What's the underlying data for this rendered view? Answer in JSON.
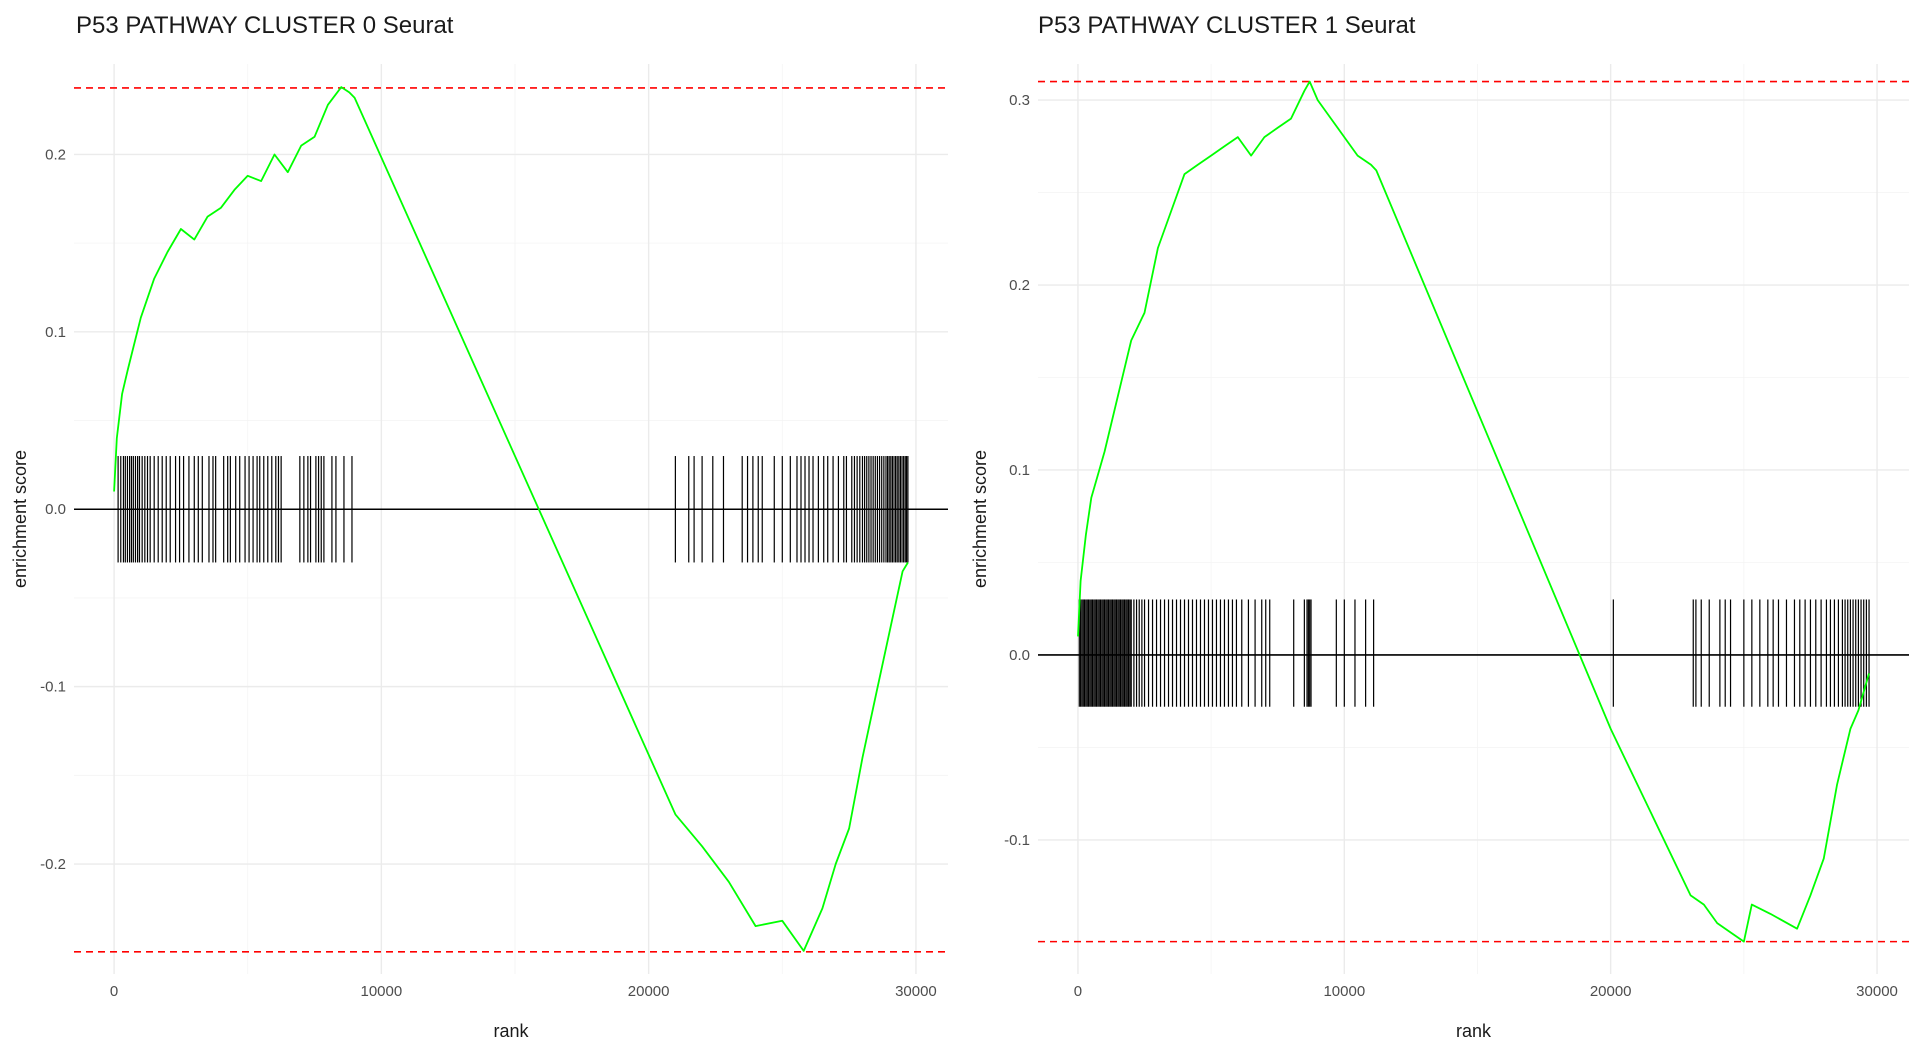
{
  "chart_data": [
    {
      "type": "line",
      "title": "P53 PATHWAY CLUSTER 0 Seurat",
      "xlabel": "rank",
      "ylabel": "enrichment score",
      "xlim": [
        -1500,
        31200
      ],
      "ylim": [
        -0.262,
        0.251
      ],
      "x_ticks": [
        0,
        10000,
        20000,
        30000
      ],
      "x_tick_labels": [
        "0",
        "10000",
        "20000",
        "30000"
      ],
      "y_ticks": [
        -0.2,
        -0.1,
        0.0,
        0.1,
        0.2
      ],
      "y_tick_labels": [
        "-0.2",
        "-0.1",
        "0.0",
        "0.1",
        "0.2"
      ],
      "grid": true,
      "max_es": 0.2375,
      "min_es": -0.2495,
      "hit_band": [
        -0.03,
        0.03
      ],
      "colors": {
        "curve": "#00ff00",
        "limits": "#ff0000",
        "hits": "#000000",
        "zero": "#000000"
      },
      "series": [
        {
          "type": "line",
          "x": [
            0,
            100,
            300,
            500,
            700,
            1000,
            1500,
            2000,
            2500,
            3000,
            3500,
            4000,
            4500,
            5000,
            5500,
            6000,
            6500,
            7000,
            7500,
            8000,
            8500,
            8800,
            9000,
            21000,
            22000,
            23000,
            24000,
            25000,
            25800,
            26500,
            27000,
            27500,
            28000,
            28500,
            29000,
            29500,
            29700
          ],
          "y": [
            0.01,
            0.04,
            0.065,
            0.078,
            0.09,
            0.108,
            0.13,
            0.145,
            0.158,
            0.152,
            0.165,
            0.17,
            0.18,
            0.188,
            0.185,
            0.2,
            0.19,
            0.205,
            0.21,
            0.228,
            0.238,
            0.235,
            0.232,
            -0.172,
            -0.19,
            -0.21,
            -0.235,
            -0.232,
            -0.249,
            -0.225,
            -0.2,
            -0.18,
            -0.14,
            -0.105,
            -0.07,
            -0.035,
            -0.03
          ]
        }
      ],
      "hits": [
        150,
        250,
        350,
        420,
        500,
        580,
        650,
        720,
        800,
        880,
        950,
        1050,
        1150,
        1250,
        1350,
        1500,
        1650,
        1800,
        1950,
        2100,
        2300,
        2450,
        2600,
        2800,
        3000,
        3150,
        3300,
        3550,
        3700,
        3800,
        4100,
        4250,
        4350,
        4550,
        4700,
        4900,
        5050,
        5200,
        5350,
        5450,
        5600,
        5750,
        5900,
        6050,
        6150,
        6250,
        6950,
        7100,
        7250,
        7350,
        7550,
        7650,
        7750,
        7850,
        8150,
        8300,
        8600,
        8900,
        21000,
        21500,
        21700,
        22000,
        22400,
        22800,
        23500,
        23700,
        23900,
        24100,
        24250,
        24700,
        25000,
        25300,
        25550,
        25700,
        25850,
        26000,
        26150,
        26350,
        26550,
        26700,
        26900,
        27100,
        27300,
        27400,
        27600,
        27700,
        27800,
        27900,
        28000,
        28080,
        28160,
        28240,
        28320,
        28400,
        28480,
        28560,
        28640,
        28720,
        28800,
        28880,
        28940,
        29000,
        29060,
        29120,
        29180,
        29240,
        29300,
        29360,
        29420,
        29480,
        29540,
        29600,
        29650,
        29700
      ]
    },
    {
      "type": "line",
      "title": "P53 PATHWAY CLUSTER 1 Seurat",
      "xlabel": "rank",
      "ylabel": "enrichment score",
      "xlim": [
        -1500,
        31200
      ],
      "ylim": [
        -0.1725,
        0.3195
      ],
      "x_ticks": [
        0,
        10000,
        20000,
        30000
      ],
      "x_tick_labels": [
        "0",
        "10000",
        "20000",
        "30000"
      ],
      "y_ticks": [
        -0.1,
        0.0,
        0.1,
        0.2,
        0.3
      ],
      "y_tick_labels": [
        "-0.1",
        "0.0",
        "0.1",
        "0.2",
        "0.3"
      ],
      "grid": true,
      "max_es": 0.31,
      "min_es": -0.155,
      "hit_band": [
        -0.028,
        0.03
      ],
      "colors": {
        "curve": "#00ff00",
        "limits": "#ff0000",
        "hits": "#000000",
        "zero": "#000000"
      },
      "series": [
        {
          "type": "line",
          "x": [
            0,
            100,
            300,
            500,
            800,
            1000,
            1500,
            2000,
            2500,
            3000,
            3500,
            4000,
            4500,
            5000,
            5500,
            6000,
            6500,
            7000,
            7500,
            8000,
            8500,
            8700,
            9000,
            9500,
            10000,
            10500,
            11000,
            11200,
            20000,
            23000,
            23500,
            24000,
            24500,
            25000,
            25300,
            26000,
            27000,
            27500,
            28000,
            28500,
            29000,
            29300,
            29700
          ],
          "y": [
            0.01,
            0.04,
            0.065,
            0.085,
            0.1,
            0.11,
            0.14,
            0.17,
            0.185,
            0.22,
            0.24,
            0.26,
            0.265,
            0.27,
            0.275,
            0.28,
            0.27,
            0.28,
            0.285,
            0.29,
            0.305,
            0.31,
            0.3,
            0.29,
            0.28,
            0.27,
            0.265,
            0.262,
            -0.04,
            -0.13,
            -0.135,
            -0.145,
            -0.15,
            -0.155,
            -0.135,
            -0.14,
            -0.148,
            -0.13,
            -0.11,
            -0.07,
            -0.04,
            -0.03,
            -0.01
          ]
        }
      ],
      "hits": [
        50,
        100,
        150,
        200,
        250,
        300,
        350,
        400,
        450,
        500,
        550,
        600,
        650,
        700,
        750,
        800,
        850,
        900,
        950,
        1000,
        1050,
        1100,
        1150,
        1200,
        1250,
        1300,
        1350,
        1400,
        1450,
        1500,
        1550,
        1600,
        1650,
        1700,
        1750,
        1800,
        1850,
        1900,
        1950,
        2000,
        2100,
        2200,
        2300,
        2400,
        2500,
        2650,
        2800,
        2950,
        3100,
        3250,
        3400,
        3550,
        3700,
        3850,
        4000,
        4150,
        4300,
        4450,
        4600,
        4750,
        4900,
        5050,
        5200,
        5350,
        5500,
        5650,
        5800,
        5950,
        6150,
        6400,
        6650,
        6900,
        7050,
        7200,
        8100,
        8500,
        8600,
        8650,
        8700,
        8750,
        9700,
        10000,
        10400,
        10800,
        11100,
        20100,
        23100,
        23200,
        23400,
        23700,
        24100,
        24300,
        24500,
        25000,
        25300,
        25600,
        25900,
        26100,
        26300,
        26600,
        26900,
        27100,
        27300,
        27500,
        27700,
        27900,
        28100,
        28250,
        28400,
        28550,
        28700,
        28800,
        28900,
        29000,
        29100,
        29200,
        29300,
        29400,
        29500,
        29600,
        29700
      ]
    }
  ]
}
